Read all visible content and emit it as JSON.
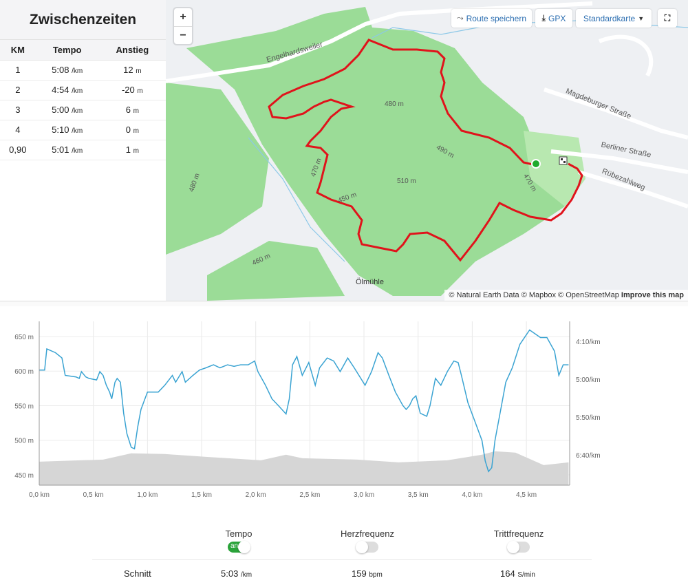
{
  "splits": {
    "title": "Zwischenzeiten",
    "headers": [
      "KM",
      "Tempo",
      "Anstieg"
    ],
    "rows": [
      {
        "km": "1",
        "pace": "5:08",
        "pace_unit": "/km",
        "climb": "12",
        "climb_unit": "m"
      },
      {
        "km": "2",
        "pace": "4:54",
        "pace_unit": "/km",
        "climb": "-20",
        "climb_unit": "m"
      },
      {
        "km": "3",
        "pace": "5:00",
        "pace_unit": "/km",
        "climb": "6",
        "climb_unit": "m"
      },
      {
        "km": "4",
        "pace": "5:10",
        "pace_unit": "/km",
        "climb": "0",
        "climb_unit": "m"
      },
      {
        "km": "0,90",
        "pace": "5:01",
        "pace_unit": "/km",
        "climb": "1",
        "climb_unit": "m"
      }
    ]
  },
  "map": {
    "zoom_in": "+",
    "zoom_out": "−",
    "save_route": "Route speichern",
    "gpx": "GPX",
    "map_type": "Standardkarte",
    "attribution": "© Natural Earth Data © Mapbox © OpenStreetMap",
    "improve": "Improve this map",
    "labels": {
      "engelhardsweiler": "Engelhardsweiler",
      "magdeburger": "Magdeburger Straße",
      "berliner": "Berliner Straße",
      "ruebezahl": "Rübezahlweg",
      "oelmuehle": "Ölmühle",
      "c480": "480 m",
      "c490": "490 m",
      "c510": "510 m",
      "c470": "470 m",
      "c470b": "470 m",
      "c460": "460 m",
      "c480b": "480 m",
      "c450": "450 m"
    },
    "colors": {
      "forest": "#9bdc97",
      "route": "#e0131b",
      "start": "#1faa2c"
    }
  },
  "chart_data": {
    "type": "line",
    "x_ticks": [
      "0,0 km",
      "0,5 km",
      "1,0 km",
      "1,5 km",
      "2,0 km",
      "2,5 km",
      "3,0 km",
      "3,5 km",
      "4,0 km",
      "4,5 km"
    ],
    "left_ticks": [
      "650 m",
      "600 m",
      "550 m",
      "500 m",
      "450 m"
    ],
    "right_ticks": [
      "4:10/km",
      "5:00/km",
      "5:50/km",
      "6:40/km"
    ],
    "xlim": [
      0,
      4.9
    ],
    "elev_lim": [
      440,
      670
    ],
    "pace_lim_sec": [
      220,
      430
    ],
    "elevation": [
      [
        0,
        469
      ],
      [
        0.59,
        472
      ],
      [
        0.85,
        481
      ],
      [
        1.16,
        480
      ],
      [
        1.54,
        476
      ],
      [
        2.05,
        471
      ],
      [
        2.28,
        479
      ],
      [
        2.43,
        474
      ],
      [
        2.94,
        472
      ],
      [
        3.32,
        468
      ],
      [
        3.77,
        471
      ],
      [
        4.09,
        479
      ],
      [
        4.21,
        484
      ],
      [
        4.4,
        482
      ],
      [
        4.66,
        464
      ],
      [
        4.89,
        468
      ]
    ],
    "pace": [
      [
        0,
        288
      ],
      [
        0.05,
        288
      ],
      [
        0.07,
        260
      ],
      [
        0.15,
        265
      ],
      [
        0.21,
        272
      ],
      [
        0.24,
        295
      ],
      [
        0.34,
        297
      ],
      [
        0.37,
        299
      ],
      [
        0.39,
        290
      ],
      [
        0.43,
        297
      ],
      [
        0.46,
        299
      ],
      [
        0.53,
        301
      ],
      [
        0.56,
        290
      ],
      [
        0.59,
        295
      ],
      [
        0.62,
        308
      ],
      [
        0.65,
        317
      ],
      [
        0.67,
        326
      ],
      [
        0.7,
        304
      ],
      [
        0.72,
        299
      ],
      [
        0.75,
        304
      ],
      [
        0.78,
        345
      ],
      [
        0.81,
        372
      ],
      [
        0.85,
        390
      ],
      [
        0.88,
        392
      ],
      [
        0.91,
        363
      ],
      [
        0.94,
        340
      ],
      [
        1.0,
        317
      ],
      [
        1.1,
        317
      ],
      [
        1.16,
        308
      ],
      [
        1.23,
        295
      ],
      [
        1.26,
        304
      ],
      [
        1.32,
        290
      ],
      [
        1.35,
        304
      ],
      [
        1.42,
        295
      ],
      [
        1.48,
        288
      ],
      [
        1.54,
        285
      ],
      [
        1.61,
        281
      ],
      [
        1.67,
        285
      ],
      [
        1.74,
        281
      ],
      [
        1.8,
        283
      ],
      [
        1.86,
        281
      ],
      [
        1.93,
        281
      ],
      [
        1.99,
        276
      ],
      [
        2.02,
        290
      ],
      [
        2.09,
        308
      ],
      [
        2.15,
        326
      ],
      [
        2.21,
        335
      ],
      [
        2.28,
        346
      ],
      [
        2.31,
        326
      ],
      [
        2.34,
        281
      ],
      [
        2.38,
        270
      ],
      [
        2.43,
        295
      ],
      [
        2.49,
        278
      ],
      [
        2.55,
        308
      ],
      [
        2.59,
        285
      ],
      [
        2.66,
        272
      ],
      [
        2.72,
        276
      ],
      [
        2.78,
        290
      ],
      [
        2.85,
        272
      ],
      [
        2.91,
        285
      ],
      [
        3.01,
        308
      ],
      [
        3.07,
        290
      ],
      [
        3.13,
        265
      ],
      [
        3.17,
        272
      ],
      [
        3.23,
        295
      ],
      [
        3.29,
        317
      ],
      [
        3.36,
        335
      ],
      [
        3.39,
        340
      ],
      [
        3.42,
        335
      ],
      [
        3.45,
        326
      ],
      [
        3.48,
        322
      ],
      [
        3.52,
        345
      ],
      [
        3.58,
        349
      ],
      [
        3.61,
        335
      ],
      [
        3.66,
        299
      ],
      [
        3.71,
        308
      ],
      [
        3.77,
        290
      ],
      [
        3.83,
        276
      ],
      [
        3.87,
        278
      ],
      [
        3.9,
        295
      ],
      [
        3.96,
        331
      ],
      [
        4.02,
        354
      ],
      [
        4.09,
        381
      ],
      [
        4.12,
        408
      ],
      [
        4.15,
        422
      ],
      [
        4.18,
        417
      ],
      [
        4.21,
        381
      ],
      [
        4.27,
        335
      ],
      [
        4.31,
        304
      ],
      [
        4.37,
        285
      ],
      [
        4.44,
        254
      ],
      [
        4.53,
        235
      ],
      [
        4.58,
        240
      ],
      [
        4.63,
        245
      ],
      [
        4.69,
        245
      ],
      [
        4.76,
        263
      ],
      [
        4.8,
        295
      ],
      [
        4.84,
        281
      ],
      [
        4.89,
        281
      ]
    ],
    "colors": {
      "pace": "#3aa3d2",
      "elevation": "#d6d6d6"
    }
  },
  "stats": {
    "tempo": "Tempo",
    "tempo_on": "an",
    "hr": "Herzfrequenz",
    "cad": "Trittfrequenz",
    "avg": "Schnitt",
    "avg_pace": "5:03",
    "avg_pace_unit": "/km",
    "avg_hr": "159",
    "avg_hr_unit": "bpm",
    "avg_cad": "164",
    "avg_cad_unit": "S/min"
  }
}
